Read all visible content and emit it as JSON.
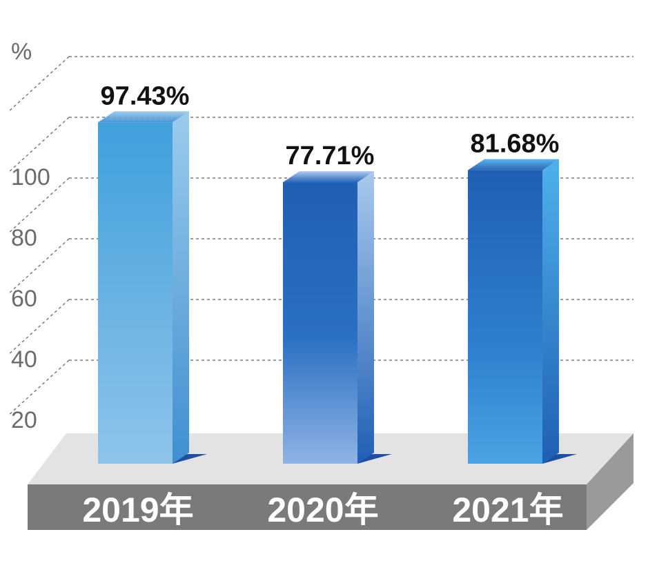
{
  "chart_data": {
    "type": "bar",
    "categories": [
      "2019年",
      "2020年",
      "2021年"
    ],
    "values": [
      97.43,
      77.71,
      81.68
    ],
    "value_labels": [
      "97.43%",
      "77.71%",
      "81.68%"
    ],
    "yunit": "%",
    "yticks": [
      20,
      40,
      60,
      80,
      100
    ],
    "ylim": [
      0,
      120
    ],
    "grid": true,
    "title": "",
    "xlabel": "",
    "ylabel": ""
  },
  "colors": {
    "bar_light_top": "#3f9fdc",
    "bar_light_bottom": "#8ec4ea",
    "bar_dark_top": "#1f5fb4",
    "bar_dark_bottom": "#8fb3e3",
    "bar_mid_top": "#1f5fb4",
    "bar_mid_bottom": "#4aa3e2",
    "platform_top": "#e3e3e3",
    "platform_front": "#7a7a7a",
    "grid": "#7a7a7a"
  }
}
